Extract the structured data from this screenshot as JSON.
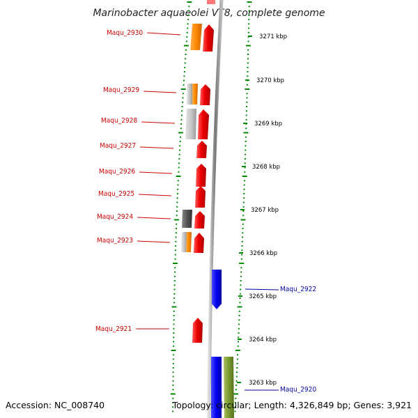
{
  "title": "Marinobacter aquaeolei VT8, complete genome",
  "footer": {
    "accession": "Accession: NC_008740",
    "topology": "Topology: circular; Length: 4,326,849 bp; Genes: 3,921"
  },
  "kbp_labels": [
    "3271 kbp",
    "3270 kbp",
    "3269 kbp",
    "3268 kbp",
    "3267 kbp",
    "3266 kbp",
    "3265 kbp",
    "3264 kbp",
    "3263 kbp"
  ],
  "gene_labels_left": [
    "Maqu_2930",
    "Maqu_2929",
    "Maqu_2928",
    "Maqu_2927",
    "Maqu_2926",
    "Maqu_2925",
    "Maqu_2924",
    "Maqu_2923",
    "Maqu_2921"
  ],
  "gene_labels_right": [
    "Maqu_2922",
    "Maqu_2920"
  ],
  "colors": {
    "forward_gene": "#ee0000",
    "reverse_gene": "#0000ee",
    "orange_feature": "#ff8800",
    "light_gray_feature": "#c8c8c8",
    "dark_gray_feature": "#555555",
    "olive_feature": "#7a9a30",
    "backbone": "#888888",
    "ticks": "#008800",
    "left_label": "#cc0000",
    "right_label": "#0000aa"
  }
}
